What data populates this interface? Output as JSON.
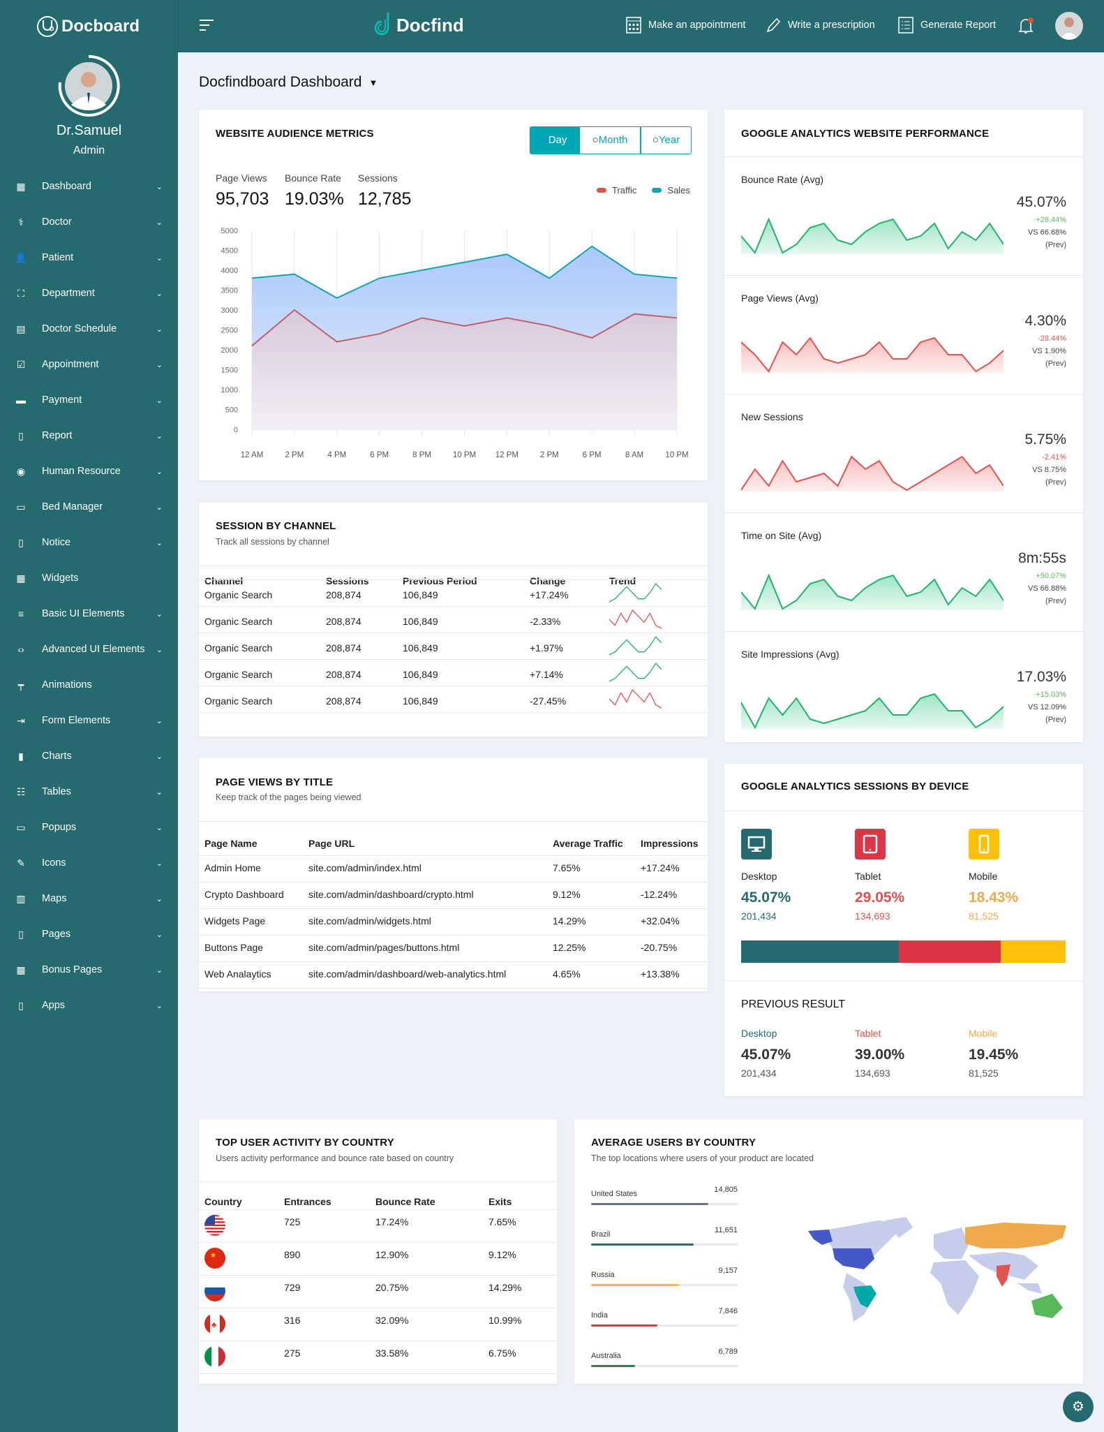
{
  "colors": {
    "sidebar": "#246a6f",
    "accent": "#00a8b5",
    "desktop": "#246a6f",
    "tablet": "#dc3545",
    "mobile": "#ffc107",
    "green": "#1fb36b",
    "red": "#e0524f"
  },
  "header": {
    "brand": "Docboard",
    "logo": "Docfind",
    "actions": [
      {
        "label": "Make an appointment",
        "icon": "calendar-icon"
      },
      {
        "label": "Write a prescription",
        "icon": "pencil-icon"
      },
      {
        "label": "Generate Report",
        "icon": "report-icon"
      }
    ]
  },
  "profile": {
    "name": "Dr.Samuel",
    "role": "Admin"
  },
  "sidebar": {
    "items": [
      {
        "label": "Dashboard",
        "icon": "▦",
        "chevron": true
      },
      {
        "label": "Doctor",
        "icon": "⚕",
        "chevron": true
      },
      {
        "label": "Patient",
        "icon": "👤",
        "chevron": true
      },
      {
        "label": "Department",
        "icon": "⛶",
        "chevron": true
      },
      {
        "label": "Doctor Schedule",
        "icon": "▤",
        "chevron": true
      },
      {
        "label": "Appointment",
        "icon": "☑",
        "chevron": true
      },
      {
        "label": "Payment",
        "icon": "▬",
        "chevron": true
      },
      {
        "label": "Report",
        "icon": "▯",
        "chevron": true
      },
      {
        "label": "Human Resource",
        "icon": "◉",
        "chevron": true
      },
      {
        "label": "Bed Manager",
        "icon": "▭",
        "chevron": true
      },
      {
        "label": "Notice",
        "icon": "▯",
        "chevron": true
      },
      {
        "label": "Widgets",
        "icon": "▦",
        "chevron": false
      },
      {
        "label": "Basic UI Elements",
        "icon": "≡",
        "chevron": true
      },
      {
        "label": "Advanced UI Elements",
        "icon": "‹›",
        "chevron": true
      },
      {
        "label": "Animations",
        "icon": "┯",
        "chevron": false
      },
      {
        "label": "Form Elements",
        "icon": "⇥",
        "chevron": true
      },
      {
        "label": "Charts",
        "icon": "▮",
        "chevron": true
      },
      {
        "label": "Tables",
        "icon": "☷",
        "chevron": true
      },
      {
        "label": "Popups",
        "icon": "▭",
        "chevron": true
      },
      {
        "label": "Icons",
        "icon": "✎",
        "chevron": true
      },
      {
        "label": "Maps",
        "icon": "▥",
        "chevron": true
      },
      {
        "label": "Pages",
        "icon": "▯",
        "chevron": true
      },
      {
        "label": "Bonus Pages",
        "icon": "▦",
        "chevron": true
      },
      {
        "label": "Apps",
        "icon": "▯",
        "chevron": true
      }
    ]
  },
  "page": {
    "title": "Docfindboard Dashboard"
  },
  "audience": {
    "title": "WEBSITE AUDIENCE METRICS",
    "periods": [
      "Day",
      "Month",
      "Year"
    ],
    "active_period": "Day",
    "stats": [
      {
        "label": "Page Views",
        "value": "95,703"
      },
      {
        "label": "Bounce Rate",
        "value": "19.03%"
      },
      {
        "label": "Sessions",
        "value": "12,785"
      }
    ]
  },
  "chart_data": {
    "type": "area",
    "x": [
      "12 AM",
      "2 PM",
      "4 PM",
      "6 PM",
      "8 PM",
      "10 PM",
      "12 PM",
      "2 PM",
      "6 PM",
      "8 AM",
      "10 PM"
    ],
    "yticks": [
      0,
      500,
      1000,
      1500,
      2000,
      2500,
      3000,
      3500,
      4000,
      4500,
      5000
    ],
    "ylim": [
      0,
      5000
    ],
    "legend": "top-right",
    "grid": true,
    "series": [
      {
        "name": "Traffic",
        "color": "#e0524f",
        "values": [
          2100,
          3000,
          2200,
          2400,
          2800,
          2600,
          2800,
          2600,
          2300,
          2900,
          2800
        ]
      },
      {
        "name": "Sales",
        "color": "#00a8b5",
        "values": [
          3800,
          3900,
          3300,
          3800,
          4000,
          4200,
          4400,
          3800,
          4600,
          3900,
          3800
        ]
      }
    ]
  },
  "performance": {
    "title": "GOOGLE ANALYTICS WEBSITE PERFORMANCE",
    "items": [
      {
        "label": "Bounce Rate (Avg)",
        "value": "45.07%",
        "change": "+28.44%",
        "trend": "up",
        "vs": "VS 66.68%",
        "prev": "(Prev)",
        "spark": [
          4,
          0,
          8,
          0,
          2,
          6,
          7,
          3,
          2,
          5,
          7,
          8,
          3,
          4,
          7,
          1,
          5,
          3,
          7,
          2
        ]
      },
      {
        "label": "Page Views (Avg)",
        "value": "4.30%",
        "change": "-28.44%",
        "trend": "down",
        "vs": "VS 1.90%",
        "prev": "(Prev)",
        "spark": [
          7,
          4,
          0,
          7,
          4,
          8,
          3,
          2,
          3,
          4,
          7,
          3,
          3,
          7,
          8,
          4,
          4,
          0,
          2,
          5
        ]
      },
      {
        "label": "New Sessions",
        "value": "5.75%",
        "change": "-2.41%",
        "trend": "down",
        "vs": "VS 8.75%",
        "prev": "(Prev)",
        "spark": [
          0,
          5,
          1,
          7,
          2,
          3,
          4,
          1,
          8,
          5,
          7,
          2,
          0,
          2,
          4,
          6,
          8,
          4,
          6,
          1
        ]
      },
      {
        "label": "Time on Site (Avg)",
        "value": "8m:55s",
        "change": "+50.07%",
        "trend": "up",
        "vs": "VS 66.88%",
        "prev": "(Prev)",
        "spark": [
          4,
          0,
          8,
          0,
          2,
          6,
          7,
          3,
          2,
          5,
          7,
          8,
          3,
          4,
          7,
          1,
          5,
          3,
          7,
          2
        ]
      },
      {
        "label": "Site Impressions (Avg)",
        "value": "17.03%",
        "change": "+15.03%",
        "trend": "up",
        "vs": "VS 12.09%",
        "prev": "(Prev)",
        "spark": [
          6,
          0,
          7,
          3,
          7,
          2,
          1,
          2,
          3,
          4,
          7,
          3,
          3,
          7,
          8,
          4,
          4,
          0,
          2,
          5
        ]
      }
    ]
  },
  "sessions": {
    "title": "SESSION BY CHANNEL",
    "subtitle": "Track all sessions by channel",
    "columns": [
      "Channel",
      "Sessions",
      "Previous Period",
      "Change",
      "Trend"
    ],
    "rows": [
      [
        "Organic Search",
        "208,874",
        "106,849",
        "+17.24%",
        "up"
      ],
      [
        "Organic Search",
        "208,874",
        "106,849",
        "-2.33%",
        "down"
      ],
      [
        "Organic Search",
        "208,874",
        "106,849",
        "+1.97%",
        "up"
      ],
      [
        "Organic Search",
        "208,874",
        "106,849",
        "+7.14%",
        "up"
      ],
      [
        "Organic Search",
        "208,874",
        "106,849",
        "-27.45%",
        "down"
      ]
    ]
  },
  "pageviews": {
    "title": "PAGE VIEWS BY TITLE",
    "subtitle": "Keep track of the pages being viewed",
    "columns": [
      "Page Name",
      "Page URL",
      "Average Traffic",
      "Impressions"
    ],
    "rows": [
      [
        "Admin Home",
        "site.com/admin/index.html",
        "7.65%",
        "+17.24%"
      ],
      [
        "Crypto Dashboard",
        "site.com/admin/dashboard/crypto.html",
        "9.12%",
        "-12.24%"
      ],
      [
        "Widgets Page",
        "site.com/admin/widgets.html",
        "14.29%",
        "+32.04%"
      ],
      [
        "Buttons Page",
        "site.com/admin/pages/buttons.html",
        "12.25%",
        "-20.75%"
      ],
      [
        "Web Analaytics",
        "site.com/admin/dashboard/web-analytics.html",
        "4.65%",
        "+13.38%"
      ]
    ]
  },
  "devices": {
    "title": "GOOGLE ANALYTICS SESSIONS BY DEVICE",
    "items": [
      {
        "label": "Desktop",
        "pct": "45.07%",
        "count": "201,434",
        "share": 45.07,
        "icon": "desktop-icon",
        "color": "#246a6f",
        "text": "#246a6f"
      },
      {
        "label": "Tablet",
        "pct": "29.05%",
        "count": "134,693",
        "share": 29.05,
        "icon": "tablet-icon",
        "color": "#dc3545",
        "text": "#dc5050"
      },
      {
        "label": "Mobile",
        "pct": "18.43%",
        "count": "81,525",
        "share": 18.43,
        "icon": "mobile-icon",
        "color": "#ffc107",
        "text": "#f0a94a"
      }
    ],
    "previous_title": "PREVIOUS RESULT",
    "previous": [
      {
        "label": "Desktop",
        "pct": "45.07%",
        "count": "201,434"
      },
      {
        "label": "Tablet",
        "pct": "39.00%",
        "count": "134,693"
      },
      {
        "label": "Mobile",
        "pct": "19.45%",
        "count": "81,525"
      }
    ]
  },
  "countries": {
    "title": "TOP USER ACTIVITY BY COUNTRY",
    "subtitle": "Users activity performance and bounce rate based on country",
    "columns": [
      "Country",
      "Entrances",
      "Bounce Rate",
      "Exits"
    ],
    "rows": [
      {
        "flag": "us",
        "entrances": "725",
        "bounce": "17.24%",
        "exits": "7.65%"
      },
      {
        "flag": "cn",
        "entrances": "890",
        "bounce": "12.90%",
        "exits": "9.12%"
      },
      {
        "flag": "ru",
        "entrances": "729",
        "bounce": "20.75%",
        "exits": "14.29%"
      },
      {
        "flag": "ca",
        "entrances": "316",
        "bounce": "32.09%",
        "exits": "10.99%"
      },
      {
        "flag": "it",
        "entrances": "275",
        "bounce": "33.58%",
        "exits": "6.75%"
      }
    ]
  },
  "avgusers": {
    "title": "AVERAGE USERS BY COUNTRY",
    "subtitle": "The top locations where users of your product are located",
    "items": [
      {
        "label": "United States",
        "value": "14,805",
        "fill": 80,
        "color": "#6c757d"
      },
      {
        "label": "Brazil",
        "value": "11,651",
        "fill": 70,
        "color": "#246a6f"
      },
      {
        "label": "Russia",
        "value": "9,157",
        "fill": 60,
        "color": "#ffc107"
      },
      {
        "label": "India",
        "value": "7,846",
        "fill": 45,
        "color": "#dc3545"
      },
      {
        "label": "Australia",
        "value": "6,789",
        "fill": 30,
        "color": "#1f8a4c"
      }
    ]
  }
}
